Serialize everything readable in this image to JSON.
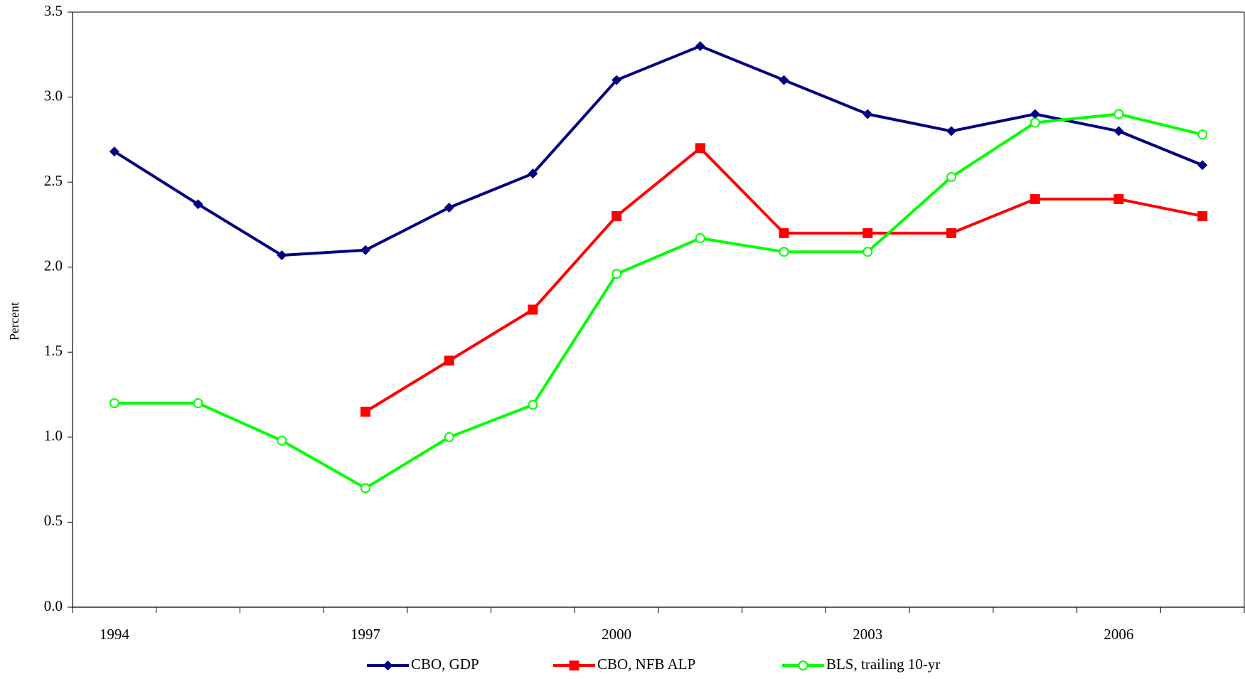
{
  "chart_data": {
    "type": "line",
    "y_label": "Percent",
    "categories": [
      "1994",
      null,
      null,
      "1997",
      null,
      null,
      "2000",
      null,
      null,
      "2003",
      null,
      null,
      "2006",
      null
    ],
    "series": [
      {
        "name": "CBO, GDP",
        "color": "#000080",
        "marker": "diamond",
        "values": [
          2.68,
          2.37,
          2.07,
          2.1,
          2.35,
          2.55,
          3.1,
          3.3,
          3.1,
          2.9,
          2.8,
          2.9,
          2.8,
          2.6
        ]
      },
      {
        "name": "CBO, NFB ALP",
        "color": "#ff0000",
        "marker": "square",
        "values": [
          null,
          null,
          null,
          1.15,
          1.45,
          1.75,
          2.3,
          2.7,
          2.2,
          2.2,
          2.2,
          2.4,
          2.4,
          2.3
        ]
      },
      {
        "name": "BLS, trailing 10-yr",
        "color": "#00ff00",
        "marker": "circle",
        "values": [
          1.2,
          1.2,
          0.98,
          0.7,
          1.0,
          1.19,
          1.96,
          2.17,
          2.09,
          2.09,
          2.53,
          2.85,
          2.9,
          2.78
        ]
      }
    ],
    "ylim": [
      0,
      3.5
    ],
    "yticks": [
      {
        "value": 0,
        "label": "0.0"
      },
      {
        "value": 0.5,
        "label": "0.5"
      },
      {
        "value": 1,
        "label": "1.0"
      },
      {
        "value": 1.5,
        "label": "1.5"
      },
      {
        "value": 2,
        "label": "2.0"
      },
      {
        "value": 2.5,
        "label": "2.5"
      },
      {
        "value": 3,
        "label": "3.0"
      },
      {
        "value": 3.5,
        "label": "3.5"
      }
    ],
    "legend": "bottom"
  }
}
